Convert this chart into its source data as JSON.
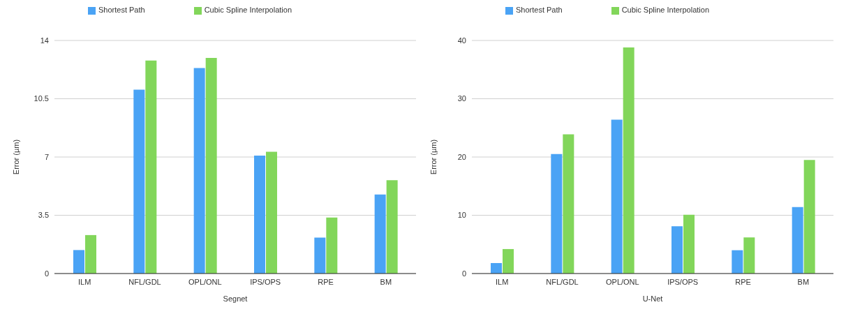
{
  "chart_data": [
    {
      "type": "bar",
      "xlabel": "Segnet",
      "ylabel": "Error (µm)",
      "categories": [
        "ILM",
        "NFL/GDL",
        "OPL/ONL",
        "IPS/OPS",
        "RPE",
        "BM"
      ],
      "series": [
        {
          "name": "Shortest Path",
          "color": "#4aa3f5",
          "values": [
            1.41,
            11.05,
            12.34,
            7.08,
            2.16,
            4.75
          ]
        },
        {
          "name": "Cubic Spline Interpolation",
          "color": "#82d65a",
          "values": [
            2.31,
            12.8,
            12.95,
            7.31,
            3.36,
            5.61
          ]
        }
      ],
      "ylim": [
        0,
        14
      ],
      "yticks": [
        0,
        3.5,
        7,
        10.5,
        14
      ],
      "grid": "y",
      "legend": "top"
    },
    {
      "type": "bar",
      "xlabel": "U-Net",
      "ylabel": "Error (µm)",
      "categories": [
        "ILM",
        "NFL/GDL",
        "OPL/ONL",
        "IPS/OPS",
        "RPE",
        "BM"
      ],
      "series": [
        {
          "name": "Shortest Path",
          "color": "#4aa3f5",
          "values": [
            1.8,
            20.5,
            26.4,
            8.1,
            4.0,
            11.4
          ]
        },
        {
          "name": "Cubic Spline Interpolation",
          "color": "#82d65a",
          "values": [
            4.2,
            23.9,
            38.8,
            10.1,
            6.2,
            19.5
          ]
        }
      ],
      "ylim": [
        0,
        40
      ],
      "yticks": [
        0,
        10,
        20,
        30,
        40
      ],
      "grid": "y",
      "legend": "top"
    }
  ]
}
